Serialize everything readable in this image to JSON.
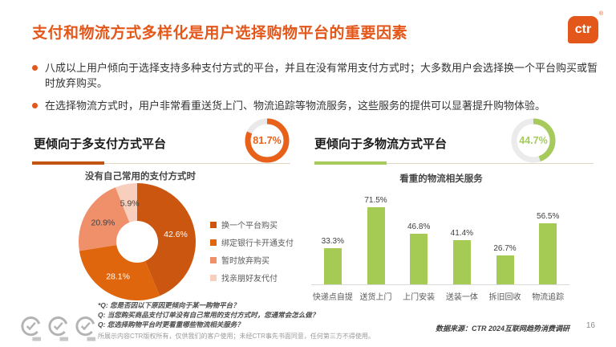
{
  "slide": {
    "title": "支付和物流方式多样化是用户选择购物平台的重要因素",
    "page_number": "16",
    "logo_text": "ctr",
    "logo_registered": "®",
    "accent_orange": "#E4571A",
    "accent_green": "#A6CB5C"
  },
  "bullets": [
    "八成以上用户倾向于选择支持多种支付方式的平台，并且在没有常用支付方式时；大多数用户会选择换一个平台购买或暂时放弃购买。",
    "在选择物流方式时，用户非常看重送货上门、物流追踪等物流服务，这些服务的提供可以显著提升购物体验。"
  ],
  "panels": {
    "payment": {
      "header": "更倾向于多支付方式平台",
      "gauge_label": "81.7%",
      "subtitle": "没有自己常用的支付方式时",
      "underline_color": "#C05410"
    },
    "logistics": {
      "header": "更倾向于多物流方式平台",
      "gauge_label": "44.7%",
      "subtitle": "看重的物流相关服务",
      "underline_color": "#A6CB5C"
    }
  },
  "chart_data": [
    {
      "id": "payment_preference_gauge",
      "type": "pie",
      "subtype": "ring-gauge",
      "title": "更倾向于多支付方式平台",
      "labels": [
        "更倾向于多支付方式平台",
        "其他"
      ],
      "values": [
        81.7,
        18.3
      ],
      "center_label": "81.7%",
      "color": "#E8611A",
      "track_color": "#E9E9E9"
    },
    {
      "id": "logistics_preference_gauge",
      "type": "pie",
      "subtype": "ring-gauge",
      "title": "更倾向于多物流方式平台",
      "labels": [
        "更倾向于多物流方式平台",
        "其他"
      ],
      "values": [
        44.7,
        55.3
      ],
      "center_label": "44.7%",
      "color": "#A6CB5C",
      "track_color": "#EBEBEB"
    },
    {
      "id": "payment_fallback_donut",
      "type": "pie",
      "subtype": "donut",
      "title": "没有自己常用的支付方式时",
      "labels": [
        "换一个平台购买",
        "绑定银行卡开通支付",
        "暂时放弃购买",
        "找亲朋好友代付"
      ],
      "values": [
        42.6,
        28.1,
        20.9,
        5.9
      ],
      "data_labels": [
        "42.6%",
        "28.1%",
        "20.9%",
        "5.9%"
      ],
      "colors": [
        "#CB560F",
        "#E0660D",
        "#F0906B",
        "#F8CEBC"
      ],
      "label_colors": [
        "#FFFFFF",
        "#FFFFFF",
        "#404040",
        "#404040"
      ],
      "legend_position": "right"
    },
    {
      "id": "logistics_services_bar",
      "type": "bar",
      "title": "看重的物流相关服务",
      "categories": [
        "快递点自提",
        "送货上门",
        "上门安装",
        "送装一体",
        "拆旧回收",
        "物流追踪"
      ],
      "values": [
        33.3,
        71.5,
        46.8,
        41.4,
        26.7,
        56.5
      ],
      "data_labels": [
        "33.3%",
        "71.5%",
        "46.8%",
        "41.4%",
        "26.7%",
        "56.5%"
      ],
      "bar_color": "#A6CB55",
      "ylim": [
        0,
        80
      ],
      "grid": false,
      "legend_position": "none"
    }
  ],
  "footer": {
    "questions": [
      "*Q: 您是否因以下原因更倾向于某一购物平台？",
      "Q: 当您购买商品支付订单没有自己常用的支付方式时，您通常会怎么做？",
      "Q: 您选择购物平台时更看重哪些物流相关服务？"
    ],
    "disclaimer": "所展示内容CTR版权所有，仅供我们的客户使用；未经CTR事先书面同意，任何第三方不得使用。",
    "source": "数据来源：CTR 2024互联网趋势消费调研"
  }
}
